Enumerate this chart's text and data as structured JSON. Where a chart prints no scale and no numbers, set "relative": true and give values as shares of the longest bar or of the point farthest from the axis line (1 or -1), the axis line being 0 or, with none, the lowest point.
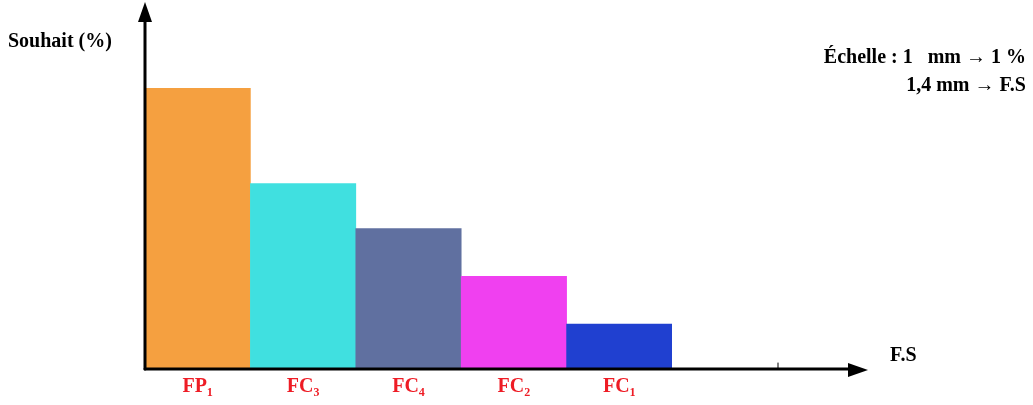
{
  "chart_data": {
    "type": "bar",
    "ylabel": "Souhait (%)",
    "categories": [
      "FP₁",
      "FC₃",
      "FC₄",
      "FC₂",
      "FC₁"
    ],
    "values": [
      1,
      0.66,
      0.5,
      0.33,
      0.16
    ],
    "colors": [
      "#f5a040",
      "#40e0e0",
      "#6070a0",
      "#f040f0",
      "#2040d0"
    ],
    "relative": true,
    "grid": false,
    "legend": false,
    "annotations": [
      "Échelle : 1   mm → 1 %",
      "1,4 mm → F.S",
      "F.S"
    ]
  }
}
